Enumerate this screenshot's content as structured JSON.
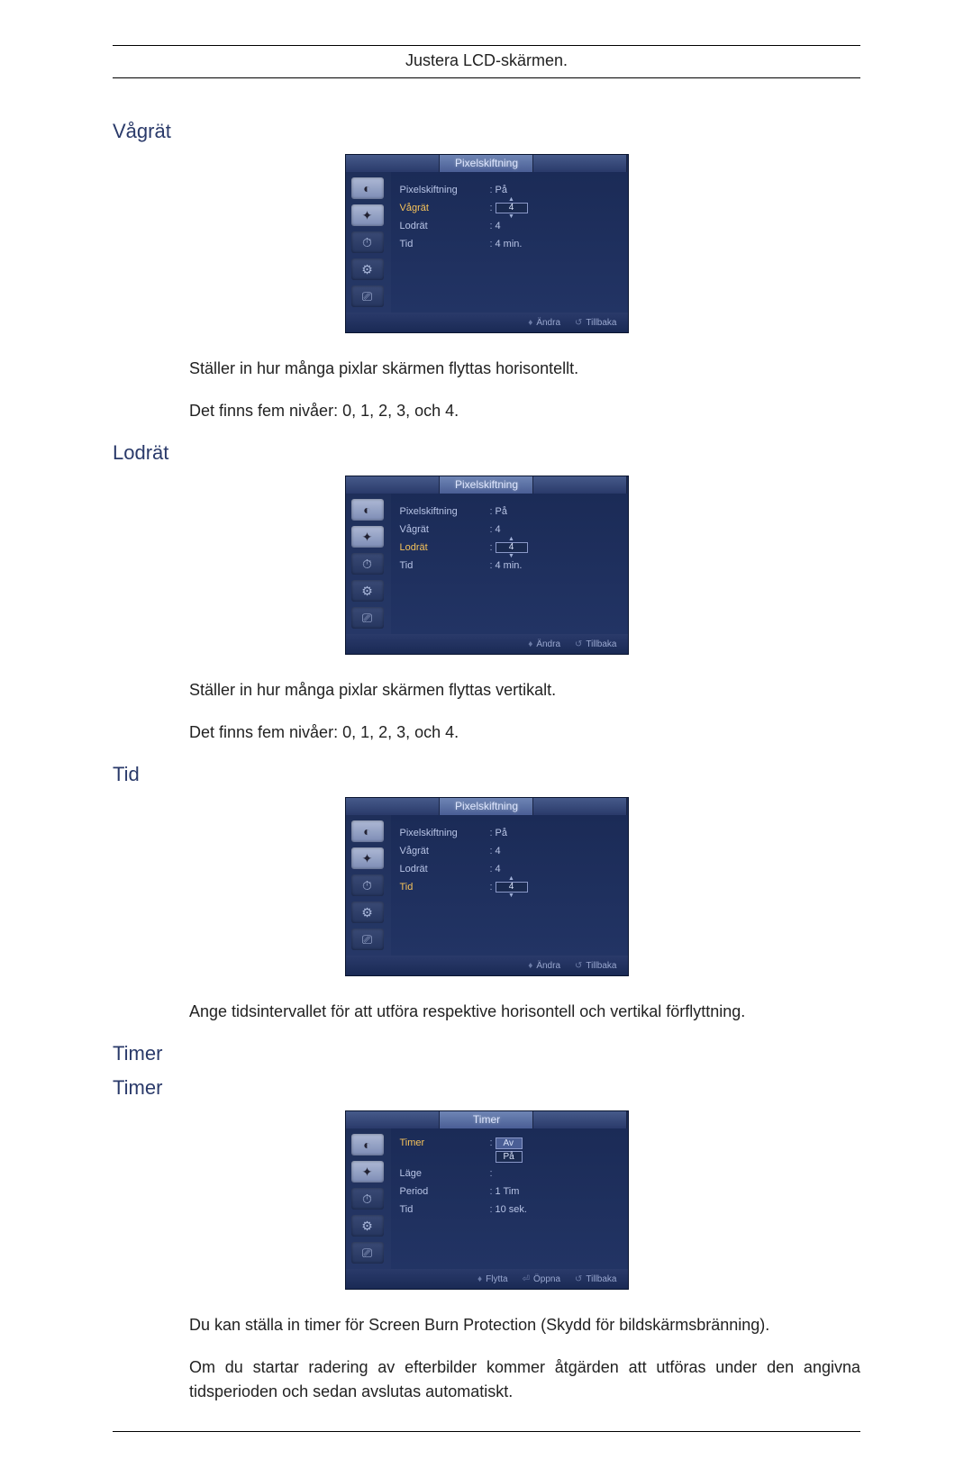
{
  "pageHeader": "Justera LCD-skärmen.",
  "sections": {
    "vagrat": {
      "title": "Vågrät",
      "osd": {
        "title": "Pixelskiftning",
        "rows": [
          {
            "label": "Pixelskiftning",
            "hl": false,
            "value": "På",
            "type": "plain"
          },
          {
            "label": "Vågrät",
            "hl": true,
            "value": "4",
            "type": "spin"
          },
          {
            "label": "Lodrät",
            "hl": false,
            "value": "4",
            "type": "plain"
          },
          {
            "label": "Tid",
            "hl": false,
            "value": "4 min.",
            "type": "plain"
          }
        ],
        "footer": [
          {
            "icon": "♦",
            "text": "Ändra"
          },
          {
            "icon": "↺",
            "text": "Tillbaka"
          }
        ]
      },
      "text1": "Ställer in hur många pixlar skärmen flyttas horisontellt.",
      "text2": "Det finns fem nivåer: 0, 1, 2, 3, och 4."
    },
    "lodrat": {
      "title": "Lodrät",
      "osd": {
        "title": "Pixelskiftning",
        "rows": [
          {
            "label": "Pixelskiftning",
            "hl": false,
            "value": "På",
            "type": "plain"
          },
          {
            "label": "Vågrät",
            "hl": false,
            "value": "4",
            "type": "plain"
          },
          {
            "label": "Lodrät",
            "hl": true,
            "value": "4",
            "type": "spin"
          },
          {
            "label": "Tid",
            "hl": false,
            "value": "4 min.",
            "type": "plain"
          }
        ],
        "footer": [
          {
            "icon": "♦",
            "text": "Ändra"
          },
          {
            "icon": "↺",
            "text": "Tillbaka"
          }
        ]
      },
      "text1": "Ställer in hur många pixlar skärmen flyttas vertikalt.",
      "text2": "Det finns fem nivåer: 0, 1, 2, 3, och 4."
    },
    "tid": {
      "title": "Tid",
      "osd": {
        "title": "Pixelskiftning",
        "rows": [
          {
            "label": "Pixelskiftning",
            "hl": false,
            "value": "På",
            "type": "plain"
          },
          {
            "label": "Vågrät",
            "hl": false,
            "value": "4",
            "type": "plain"
          },
          {
            "label": "Lodrät",
            "hl": false,
            "value": "4",
            "type": "plain"
          },
          {
            "label": "Tid",
            "hl": true,
            "value": "4",
            "type": "spin"
          }
        ],
        "footer": [
          {
            "icon": "♦",
            "text": "Ändra"
          },
          {
            "icon": "↺",
            "text": "Tillbaka"
          }
        ]
      },
      "text1": "Ange tidsintervallet för att utföra respektive horisontell och vertikal förflyttning."
    },
    "timer1": {
      "title": "Timer"
    },
    "timer2": {
      "title": "Timer",
      "osd": {
        "title": "Timer",
        "rows": [
          {
            "label": "Timer",
            "hl": true,
            "type": "select",
            "options": [
              "Av",
              "På"
            ],
            "selected": 0
          },
          {
            "label": "Läge",
            "hl": false,
            "value": "",
            "type": "plain"
          },
          {
            "label": "Period",
            "hl": false,
            "value": "1 Tim",
            "type": "plain"
          },
          {
            "label": "Tid",
            "hl": false,
            "value": "10 sek.",
            "type": "plain"
          }
        ],
        "footer": [
          {
            "icon": "♦",
            "text": "Flytta"
          },
          {
            "icon": "⏎",
            "text": "Öppna"
          },
          {
            "icon": "↺",
            "text": "Tillbaka"
          }
        ]
      },
      "text1": "Du kan ställa in timer för Screen Burn Protection (Skydd för bildskärmsbränning).",
      "text2": "Om du startar radering av efterbilder kommer åtgärden att utföras under den angivna tidsperioden och sedan avslutas automatiskt."
    }
  },
  "iconGlyphs": [
    "◐",
    "✦",
    "⏱",
    "⚙",
    "⎚"
  ]
}
